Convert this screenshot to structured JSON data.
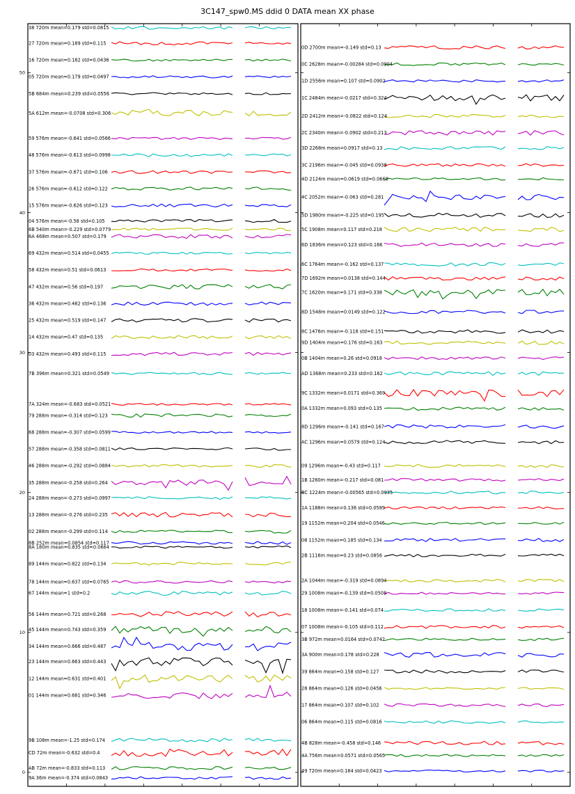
{
  "title": "3C147_spw0.MS ddid 0 DATA mean XX phase",
  "colors": [
    "#00bfbf",
    "#ff0000",
    "#008000",
    "#0000ff",
    "#000000",
    "#bfbf00",
    "#bf00bf"
  ],
  "chart_data": [
    {
      "type": "line",
      "panel": "left",
      "yticks": [
        "0",
        "10",
        "20",
        "30",
        "40",
        "50"
      ],
      "ylim": [
        -1,
        53.5
      ],
      "grid": false,
      "rows": [
        {
          "label": "38 720m mean=0.179 std=0.0815",
          "offset": 53.2,
          "color": "#00bfbf",
          "std": 0.0815
        },
        {
          "label": "27 720m mean=0.189 std=0.115",
          "offset": 52.1,
          "color": "#ff0000",
          "std": 0.115
        },
        {
          "label": "16 720m mean=0.182 std=0.0436",
          "offset": 50.9,
          "color": "#008000",
          "std": 0.0436
        },
        {
          "label": "05 720m mean=0.179 std=0.0497",
          "offset": 49.7,
          "color": "#0000ff",
          "std": 0.0497
        },
        {
          "label": "5B 684m mean=0.239 std=0.0556",
          "offset": 48.5,
          "color": "#000000",
          "std": 0.0556
        },
        {
          "label": "5A 612m mean=-0.0708 std=0.306",
          "offset": 47.1,
          "color": "#bfbf00",
          "std": 0.306
        },
        {
          "label": "59 576m mean=-0.641 std=0.0566",
          "offset": 45.3,
          "color": "#bf00bf",
          "std": 0.0566
        },
        {
          "label": "48 576m mean=-0.613 std=0.0998",
          "offset": 44.1,
          "color": "#00bfbf",
          "std": 0.0998
        },
        {
          "label": "37 576m mean=-0.671 std=0.106",
          "offset": 42.9,
          "color": "#ff0000",
          "std": 0.106
        },
        {
          "label": "26 576m mean=-0.612 std=0.122",
          "offset": 41.7,
          "color": "#008000",
          "std": 0.122
        },
        {
          "label": "15 576m mean=-0.626 std=0.123",
          "offset": 40.5,
          "color": "#0000ff",
          "std": 0.123
        },
        {
          "label": "04 576m mean=-0.58 std=0.105",
          "offset": 39.4,
          "color": "#000000",
          "std": 0.105
        },
        {
          "label": "6B 540m mean=-0.229 std=0.0779",
          "offset": 38.8,
          "color": "#bfbf00",
          "std": 0.0779
        },
        {
          "label": "6A 468m mean=0.507 std=0.179",
          "offset": 38.3,
          "color": "#bf00bf",
          "std": 0.179
        },
        {
          "label": "69 432m mean=0.514 std=0.0455",
          "offset": 37.1,
          "color": "#00bfbf",
          "std": 0.0455
        },
        {
          "label": "58 432m mean=0.51 std=0.0613",
          "offset": 35.9,
          "color": "#ff0000",
          "std": 0.0613
        },
        {
          "label": "47 432m mean=0.56 std=0.197",
          "offset": 34.7,
          "color": "#008000",
          "std": 0.197
        },
        {
          "label": "36 432m mean=0.482 std=0.136",
          "offset": 33.5,
          "color": "#0000ff",
          "std": 0.136
        },
        {
          "label": "25 432m mean=0.519 std=0.147",
          "offset": 32.3,
          "color": "#000000",
          "std": 0.147
        },
        {
          "label": "14 432m mean=0.47 std=0.135",
          "offset": 31.1,
          "color": "#bfbf00",
          "std": 0.135
        },
        {
          "label": "03 432m mean=0.493 std=0.115",
          "offset": 29.9,
          "color": "#bf00bf",
          "std": 0.115
        },
        {
          "label": "7B 396m mean=0.321 std=0.0549",
          "offset": 28.5,
          "color": "#00bfbf",
          "std": 0.0549
        },
        {
          "label": "7A 324m mean=-0.683 std=0.0521",
          "offset": 26.3,
          "color": "#ff0000",
          "std": 0.0521
        },
        {
          "label": "79 288m mean=-0.314 std=0.123",
          "offset": 25.5,
          "color": "#008000",
          "std": 0.123
        },
        {
          "label": "68 288m mean=-0.307 std=0.0599",
          "offset": 24.3,
          "color": "#0000ff",
          "std": 0.0599
        },
        {
          "label": "57 288m mean=-0.358 std=0.0811",
          "offset": 23.1,
          "color": "#000000",
          "std": 0.0811
        },
        {
          "label": "46 288m mean=-0.292 std=0.0884",
          "offset": 21.9,
          "color": "#bfbf00",
          "std": 0.0884
        },
        {
          "label": "35 288m mean=-0.258 std=0.264",
          "offset": 20.7,
          "color": "#bf00bf",
          "std": 0.264
        },
        {
          "label": "24 288m mean=-0.273 std=0.0997",
          "offset": 19.6,
          "color": "#00bfbf",
          "std": 0.0997
        },
        {
          "label": "13 288m mean=-0.276 std=0.235",
          "offset": 18.4,
          "color": "#ff0000",
          "std": 0.235
        },
        {
          "label": "02 288m mean=-0.299 std=0.114",
          "offset": 17.2,
          "color": "#008000",
          "std": 0.114
        },
        {
          "label": "8B 252m mean=0.0854 std=0.117",
          "offset": 16.4,
          "color": "#0000ff",
          "std": 0.117
        },
        {
          "label": "8A 180m mean=0.835 std=0.0664",
          "offset": 16.1,
          "color": "#000000",
          "std": 0.0664
        },
        {
          "label": "89 144m mean=0.822 std=0.134",
          "offset": 14.9,
          "color": "#bfbf00",
          "std": 0.134
        },
        {
          "label": "78 144m mean=0.637 std=0.0765",
          "offset": 13.6,
          "color": "#bf00bf",
          "std": 0.0765
        },
        {
          "label": "67 144m mean=1 std=0.2",
          "offset": 12.8,
          "color": "#00bfbf",
          "std": 0.2
        },
        {
          "label": "56 144m mean=0.721 std=0.268",
          "offset": 11.3,
          "color": "#ff0000",
          "std": 0.268
        },
        {
          "label": "45 144m mean=0.743 std=0.359",
          "offset": 10.2,
          "color": "#008000",
          "std": 0.359
        },
        {
          "label": "34 144m mean=0.666 std=0.487",
          "offset": 9.0,
          "color": "#0000ff",
          "std": 0.487
        },
        {
          "label": "23 144m mean=0.663 std=0.443",
          "offset": 7.9,
          "color": "#000000",
          "std": 0.443
        },
        {
          "label": "12 144m mean=0.631 std=0.401",
          "offset": 6.7,
          "color": "#bfbf00",
          "std": 0.401
        },
        {
          "label": "01 144m mean=0.681 std=0.346",
          "offset": 5.5,
          "color": "#bf00bf",
          "std": 0.346
        },
        {
          "label": "9B 108m mean=-1.25 std=0.174",
          "offset": 2.3,
          "color": "#00bfbf",
          "std": 0.174
        },
        {
          "label": "CD 72m mean=-0.632 std=0.4",
          "offset": 1.4,
          "color": "#ff0000",
          "std": 0.4
        },
        {
          "label": "AB 72m mean=-0.833 std=0.113",
          "offset": 0.3,
          "color": "#008000",
          "std": 0.113
        },
        {
          "label": "9A 36m mean=-0.374 std=0.0843",
          "offset": -0.4,
          "color": "#0000ff",
          "std": 0.0843
        }
      ]
    },
    {
      "type": "line",
      "panel": "right",
      "yticks": [],
      "ylim": [
        -1,
        53.5
      ],
      "grid": false,
      "rows": [
        {
          "label": "0D 2700m mean=-0.149 std=0.13",
          "offset": 51.8,
          "color": "#ff0000",
          "std": 0.13
        },
        {
          "label": "0C 2628m mean=-0.00284 std=0.0904",
          "offset": 50.6,
          "color": "#008000",
          "std": 0.0904
        },
        {
          "label": "1D 2556m mean=0.107 std=0.0902",
          "offset": 49.4,
          "color": "#0000ff",
          "std": 0.0902
        },
        {
          "label": "1C 2484m mean=-0.0217 std=0.324",
          "offset": 48.2,
          "color": "#000000",
          "std": 0.324
        },
        {
          "label": "2D 2412m mean=-0.0822 std=0.124",
          "offset": 46.9,
          "color": "#bfbf00",
          "std": 0.124
        },
        {
          "label": "2C 2340m mean=-0.0902 std=0.213",
          "offset": 45.7,
          "color": "#bf00bf",
          "std": 0.213
        },
        {
          "label": "3D 2268m mean=0.0917 std=0.13",
          "offset": 44.6,
          "color": "#00bfbf",
          "std": 0.13
        },
        {
          "label": "3C 2196m mean=-0.045 std=0.0938",
          "offset": 43.4,
          "color": "#ff0000",
          "std": 0.0938
        },
        {
          "label": "4D 2124m mean=0.0619 std=0.0668",
          "offset": 42.4,
          "color": "#008000",
          "std": 0.0668
        },
        {
          "label": "4C 2052m mean=-0.063 std=0.281",
          "offset": 41.1,
          "color": "#0000ff",
          "std": 0.281
        },
        {
          "label": "5D 1980m mean=-0.225 std=0.195",
          "offset": 39.8,
          "color": "#000000",
          "std": 0.195
        },
        {
          "label": "5C 1908m mean=0.117 std=0.218",
          "offset": 38.8,
          "color": "#bfbf00",
          "std": 0.218
        },
        {
          "label": "6D 1836m mean=0.123 std=0.166",
          "offset": 37.7,
          "color": "#bf00bf",
          "std": 0.166
        },
        {
          "label": "6C 1764m mean=-0.162 std=0.137",
          "offset": 36.3,
          "color": "#00bfbf",
          "std": 0.137
        },
        {
          "label": "7D 1692m mean=0.0138 std=0.144",
          "offset": 35.3,
          "color": "#ff0000",
          "std": 0.144
        },
        {
          "label": "7C 1620m mean=0.171 std=0.338",
          "offset": 34.3,
          "color": "#008000",
          "std": 0.338
        },
        {
          "label": "8D 1548m mean=0.0149 std=0.122",
          "offset": 32.9,
          "color": "#0000ff",
          "std": 0.122
        },
        {
          "label": "8C 1476m mean=-0.118 std=0.151",
          "offset": 31.5,
          "color": "#000000",
          "std": 0.151
        },
        {
          "label": "9D 1404m mean=0.176 std=0.163",
          "offset": 30.7,
          "color": "#bfbf00",
          "std": 0.163
        },
        {
          "label": "0B 1404m mean=0.26 std=0.0918",
          "offset": 29.6,
          "color": "#bf00bf",
          "std": 0.0918
        },
        {
          "label": "AD 1368m mean=0.233 std=0.162",
          "offset": 28.5,
          "color": "#00bfbf",
          "std": 0.162
        },
        {
          "label": "9C 1332m mean=0.0171 std=0.369",
          "offset": 27.1,
          "color": "#ff0000",
          "std": 0.369
        },
        {
          "label": "0A 1332m mean=0.093 std=0.135",
          "offset": 26.0,
          "color": "#008000",
          "std": 0.135
        },
        {
          "label": "8D 1296m mean=-0.141 std=0.167",
          "offset": 24.7,
          "color": "#0000ff",
          "std": 0.167
        },
        {
          "label": "AC 1296m mean=0.0579 std=0.124",
          "offset": 23.6,
          "color": "#000000",
          "std": 0.124
        },
        {
          "label": "09 1296m mean=-0.43 std=0.117",
          "offset": 21.9,
          "color": "#bfbf00",
          "std": 0.117
        },
        {
          "label": "1B 1260m mean=-0.217 std=0.081",
          "offset": 20.9,
          "color": "#bf00bf",
          "std": 0.081
        },
        {
          "label": "BC 1224m mean=-0.00565 std=0.0935",
          "offset": 20.0,
          "color": "#00bfbf",
          "std": 0.0935
        },
        {
          "label": "1A 1188m mean=0.136 std=0.0589",
          "offset": 18.9,
          "color": "#ff0000",
          "std": 0.0589
        },
        {
          "label": "19 1152m mean=0.204 std=0.0546",
          "offset": 17.8,
          "color": "#008000",
          "std": 0.0546
        },
        {
          "label": "08 1152m mean=0.185 std=0.134",
          "offset": 16.6,
          "color": "#0000ff",
          "std": 0.134
        },
        {
          "label": "2B 1116m mean=0.23 std=0.0856",
          "offset": 15.5,
          "color": "#000000",
          "std": 0.0856
        },
        {
          "label": "2A 1044m mean=-0.319 std=0.0894",
          "offset": 13.7,
          "color": "#bfbf00",
          "std": 0.0894
        },
        {
          "label": "29 1008m mean=-0.139 std=0.0508",
          "offset": 12.8,
          "color": "#bf00bf",
          "std": 0.0508
        },
        {
          "label": "18 1008m mean=-0.141 std=0.074",
          "offset": 11.6,
          "color": "#00bfbf",
          "std": 0.074
        },
        {
          "label": "07 1008m mean=-0.105 std=0.112",
          "offset": 10.4,
          "color": "#ff0000",
          "std": 0.112
        },
        {
          "label": "3B 972m mean=0.0164 std=0.0742",
          "offset": 9.5,
          "color": "#008000",
          "std": 0.0742
        },
        {
          "label": "3A 900m mean=0.178 std=0.228",
          "offset": 8.4,
          "color": "#0000ff",
          "std": 0.228
        },
        {
          "label": "39 864m mean=0.158 std=0.127",
          "offset": 7.2,
          "color": "#000000",
          "std": 0.127
        },
        {
          "label": "28 864m mean=0.126 std=0.0456",
          "offset": 6.0,
          "color": "#bfbf00",
          "std": 0.0456
        },
        {
          "label": "17 864m mean=0.107 std=0.102",
          "offset": 4.8,
          "color": "#bf00bf",
          "std": 0.102
        },
        {
          "label": "06 864m mean=0.115 std=0.0816",
          "offset": 3.6,
          "color": "#00bfbf",
          "std": 0.0816
        },
        {
          "label": "4B 828m mean=-0.458 std=0.146",
          "offset": 2.1,
          "color": "#ff0000",
          "std": 0.146
        },
        {
          "label": "4A 756m mean=0.0571 std=0.0565",
          "offset": 1.2,
          "color": "#008000",
          "std": 0.0565
        },
        {
          "label": "49 720m mean=0.184 std=0.0423",
          "offset": 0.1,
          "color": "#0000ff",
          "std": 0.0423
        }
      ]
    }
  ]
}
